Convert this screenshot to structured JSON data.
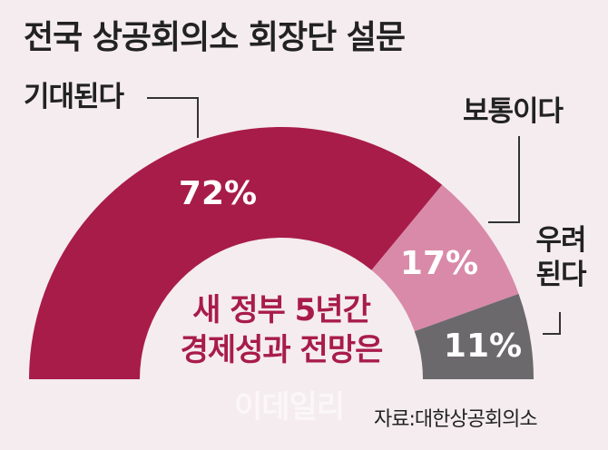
{
  "chart_data": {
    "type": "semi-donut",
    "title": "전국 상공회의소 회장단 설문",
    "categories": [
      "기대된다",
      "보통이다",
      "우려된다"
    ],
    "values": [
      72,
      17,
      11
    ],
    "value_labels": [
      "72%",
      "17%",
      "11%"
    ],
    "colors": [
      "#a81c4a",
      "#d98aa8",
      "#6b696c"
    ],
    "center_text": [
      "새 정부 5년간",
      "경제성과 전망은"
    ],
    "source": "자료:대한상공회의소",
    "watermark": "이데일리"
  }
}
